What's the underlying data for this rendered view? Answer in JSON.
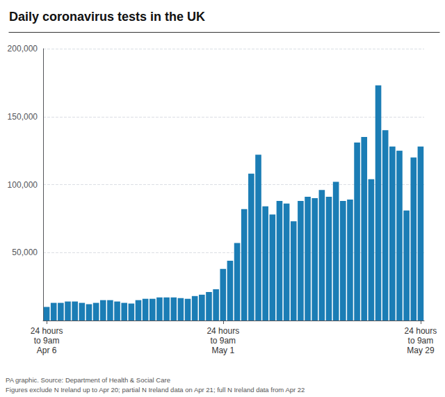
{
  "chart_data": {
    "type": "bar",
    "title": "Daily coronavirus tests in the UK",
    "annotations": [
      "PA graphic. Source: Department of Health & Social Care",
      "Figures exclude N Ireland up to Apr 20; partial N Ireland data on Apr 21; full N Ireland data from Apr 22"
    ],
    "categories": [
      "24 hours\nto 9am\nApr 6",
      null,
      null,
      null,
      null,
      null,
      null,
      null,
      null,
      null,
      null,
      null,
      null,
      null,
      null,
      null,
      null,
      null,
      null,
      null,
      null,
      null,
      null,
      null,
      null,
      "24 hours\nto 9am\nMay 1",
      null,
      null,
      null,
      null,
      null,
      null,
      null,
      null,
      null,
      null,
      null,
      null,
      null,
      null,
      null,
      null,
      null,
      null,
      null,
      null,
      null,
      null,
      null,
      null,
      null,
      null,
      null,
      "24 hours\nto 9am\nMay 29"
    ],
    "values": [
      10000,
      13000,
      13000,
      14000,
      14000,
      13000,
      12000,
      13000,
      15000,
      15000,
      14000,
      13000,
      12500,
      15000,
      16000,
      16000,
      17000,
      17000,
      17000,
      16500,
      16000,
      18000,
      19000,
      21000,
      23000,
      38000,
      44000,
      57000,
      82000,
      108000,
      122000,
      84000,
      78000,
      88000,
      86000,
      73000,
      88000,
      91000,
      90000,
      96000,
      91000,
      102000,
      88000,
      89000,
      131000,
      135000,
      104000,
      173000,
      140000,
      128000,
      125000,
      81000,
      120000,
      128000
    ],
    "color": "#1b7db5",
    "ylim": [
      0,
      200000
    ],
    "yticks": [
      {
        "value": 50000,
        "label": "50,000"
      },
      {
        "value": 100000,
        "label": "100,000"
      },
      {
        "value": 150000,
        "label": "150,000"
      },
      {
        "value": 200000,
        "label": "200,000"
      }
    ],
    "grid": true
  }
}
